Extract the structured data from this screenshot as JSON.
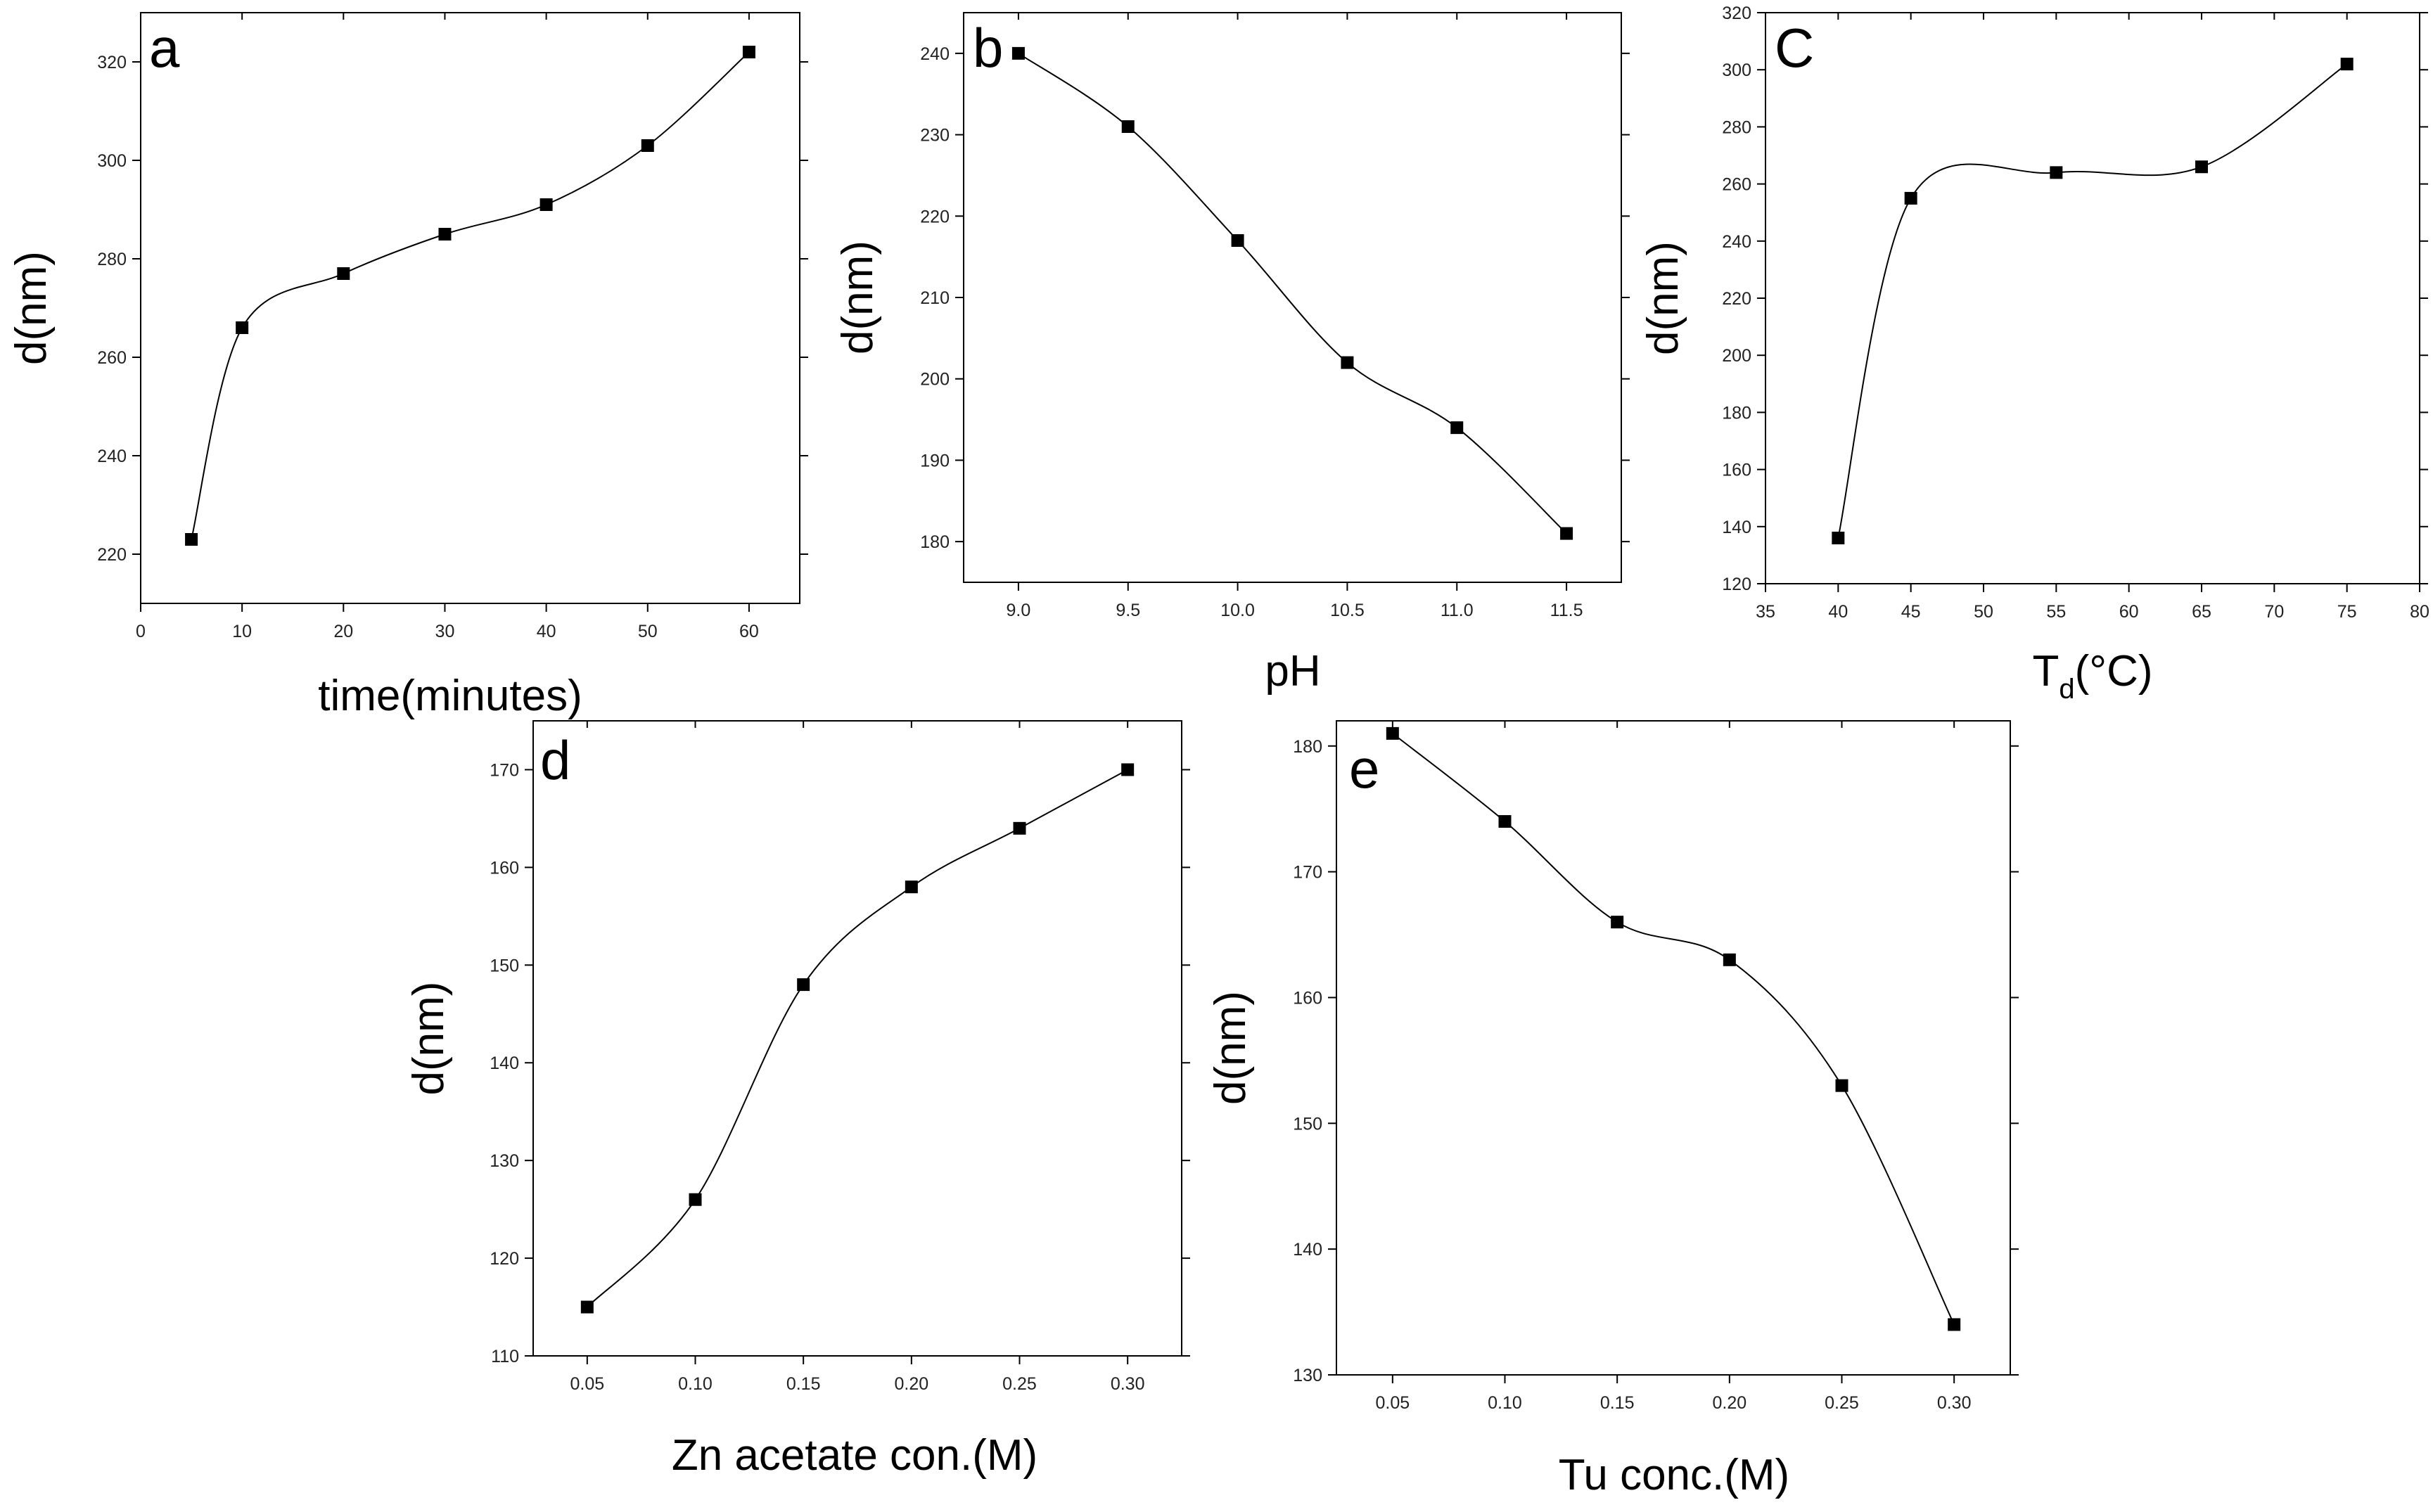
{
  "chart_data": [
    {
      "type": "line",
      "panel_label": "a",
      "xlabel": "time(minutes)",
      "xlabel_main": "time(minutes)",
      "xlabel_sub": "",
      "xlabel_tail": "",
      "ylabel": "d(nm)",
      "xlim": [
        0,
        65
      ],
      "ylim": [
        210,
        330
      ],
      "x_ticks": [
        0,
        10,
        20,
        30,
        40,
        50,
        60
      ],
      "x_tick_labels": [
        "0",
        "10",
        "20",
        "30",
        "40",
        "50",
        "60"
      ],
      "y_ticks": [
        220,
        240,
        260,
        280,
        300,
        320
      ],
      "y_tick_labels": [
        "220",
        "240",
        "260",
        "280",
        "300",
        "320"
      ],
      "grid": false,
      "smooth": true,
      "marker": "square",
      "series": [
        {
          "name": "d",
          "x": [
            5,
            10,
            20,
            30,
            40,
            50,
            60
          ],
          "y": [
            223,
            266,
            277,
            285,
            291,
            303,
            322
          ]
        }
      ]
    },
    {
      "type": "line",
      "panel_label": "b",
      "xlabel": "pH",
      "xlabel_main": "pH",
      "xlabel_sub": "",
      "xlabel_tail": "",
      "ylabel": "d(nm)",
      "xlim": [
        8.75,
        11.75
      ],
      "ylim": [
        175,
        245
      ],
      "x_ticks": [
        9.0,
        9.5,
        10.0,
        10.5,
        11.0,
        11.5
      ],
      "x_tick_labels": [
        "9.0",
        "9.5",
        "10.0",
        "10.5",
        "11.0",
        "11.5"
      ],
      "y_ticks": [
        180,
        190,
        200,
        210,
        220,
        230,
        240
      ],
      "y_tick_labels": [
        "180",
        "190",
        "200",
        "210",
        "220",
        "230",
        "240"
      ],
      "grid": false,
      "smooth": true,
      "marker": "square",
      "series": [
        {
          "name": "d",
          "x": [
            9.0,
            9.5,
            10.0,
            10.5,
            11.0,
            11.5
          ],
          "y": [
            240,
            231,
            217,
            202,
            194,
            181
          ]
        }
      ]
    },
    {
      "type": "line",
      "panel_label": "C",
      "xlabel": "Td(°C)",
      "xlabel_main": "T",
      "xlabel_sub": "d",
      "xlabel_tail": "(°C)",
      "ylabel": "d(nm)",
      "xlim": [
        35,
        80
      ],
      "ylim": [
        120,
        320
      ],
      "x_ticks": [
        35,
        40,
        45,
        50,
        55,
        60,
        65,
        70,
        75,
        80
      ],
      "x_tick_labels": [
        "35",
        "40",
        "45",
        "50",
        "55",
        "60",
        "65",
        "70",
        "75",
        "80"
      ],
      "y_ticks": [
        120,
        140,
        160,
        180,
        200,
        220,
        240,
        260,
        280,
        300,
        320
      ],
      "y_tick_labels": [
        "120",
        "140",
        "160",
        "180",
        "200",
        "220",
        "240",
        "260",
        "280",
        "300",
        "320"
      ],
      "grid": false,
      "smooth": true,
      "marker": "square",
      "series": [
        {
          "name": "d",
          "x": [
            40,
            45,
            55,
            65,
            75
          ],
          "y": [
            136,
            255,
            264,
            266,
            302
          ]
        }
      ]
    },
    {
      "type": "line",
      "panel_label": "d",
      "xlabel": "Zn acetate con.(M)",
      "xlabel_main": "Zn acetate con.(M)",
      "xlabel_sub": "",
      "xlabel_tail": "",
      "ylabel": "d(nm)",
      "xlim": [
        0.025,
        0.325
      ],
      "ylim": [
        110,
        175
      ],
      "x_ticks": [
        0.05,
        0.1,
        0.15,
        0.2,
        0.25,
        0.3
      ],
      "x_tick_labels": [
        "0.05",
        "0.10",
        "0.15",
        "0.20",
        "0.25",
        "0.30"
      ],
      "y_ticks": [
        110,
        120,
        130,
        140,
        150,
        160,
        170
      ],
      "y_tick_labels": [
        "110",
        "120",
        "130",
        "140",
        "150",
        "160",
        "170"
      ],
      "grid": false,
      "smooth": true,
      "marker": "square",
      "series": [
        {
          "name": "d",
          "x": [
            0.05,
            0.1,
            0.15,
            0.2,
            0.25,
            0.3
          ],
          "y": [
            115,
            126,
            148,
            158,
            164,
            170
          ]
        }
      ]
    },
    {
      "type": "line",
      "panel_label": "e",
      "xlabel": "Tu conc.(M)",
      "xlabel_main": "Tu conc.(M)",
      "xlabel_sub": "",
      "xlabel_tail": "",
      "ylabel": "d(nm)",
      "xlim": [
        0.025,
        0.325
      ],
      "ylim": [
        130,
        182
      ],
      "x_ticks": [
        0.05,
        0.1,
        0.15,
        0.2,
        0.25,
        0.3
      ],
      "x_tick_labels": [
        "0.05",
        "0.10",
        "0.15",
        "0.20",
        "0.25",
        "0.30"
      ],
      "y_ticks": [
        130,
        140,
        150,
        160,
        170,
        180
      ],
      "y_tick_labels": [
        "130",
        "140",
        "150",
        "160",
        "170",
        "180"
      ],
      "grid": false,
      "smooth": true,
      "marker": "square",
      "series": [
        {
          "name": "d",
          "x": [
            0.05,
            0.1,
            0.15,
            0.2,
            0.25,
            0.3
          ],
          "y": [
            181,
            174,
            166,
            163,
            153,
            134
          ]
        }
      ]
    }
  ]
}
